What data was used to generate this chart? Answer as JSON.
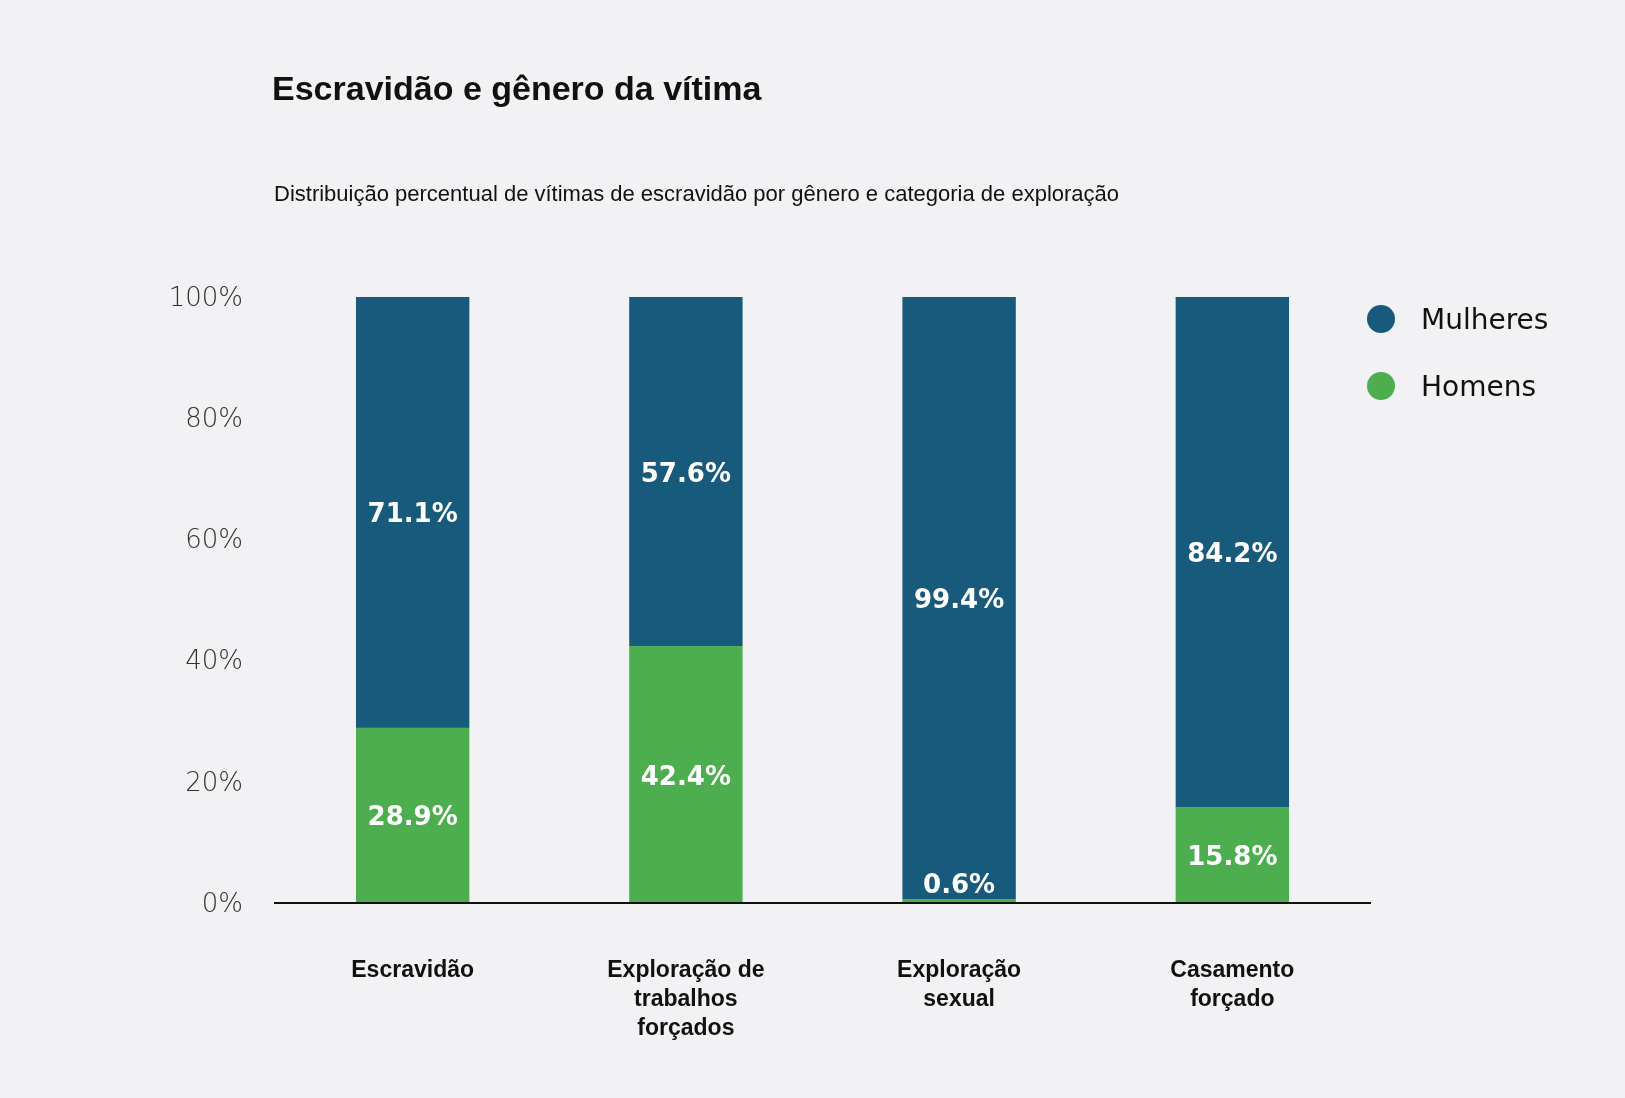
{
  "chart_data": {
    "type": "bar",
    "title": "Escravidão e gênero da vítima",
    "subtitle": "Distribuição percentual de vítimas de escravidão por gênero e categoria de exploração",
    "categories": [
      "Escravidão",
      "Exploração de trabalhos forçados",
      "Exploração sexual",
      "Casamento forçado"
    ],
    "stacked": true,
    "series": [
      {
        "name": "Homens",
        "color": "#4cae4f",
        "values": [
          28.9,
          42.4,
          0.6,
          15.8
        ],
        "value_labels": [
          "28.9%",
          "42.4%",
          "0.6%",
          "15.8%"
        ]
      },
      {
        "name": "Mulheres",
        "color": "#175a7b",
        "values": [
          71.1,
          57.6,
          99.4,
          84.2
        ],
        "value_labels": [
          "71.1%",
          "57.6%",
          "99.4%",
          "84.2%"
        ]
      }
    ],
    "ylim": [
      0,
      100
    ],
    "yticks": [
      {
        "value": 0,
        "label": "0%"
      },
      {
        "value": 20,
        "label": "20%"
      },
      {
        "value": 40,
        "label": "40%"
      },
      {
        "value": 60,
        "label": "60%"
      },
      {
        "value": 80,
        "label": "80%"
      },
      {
        "value": 100,
        "label": "100%"
      }
    ],
    "grid": false,
    "legend": "top right"
  }
}
